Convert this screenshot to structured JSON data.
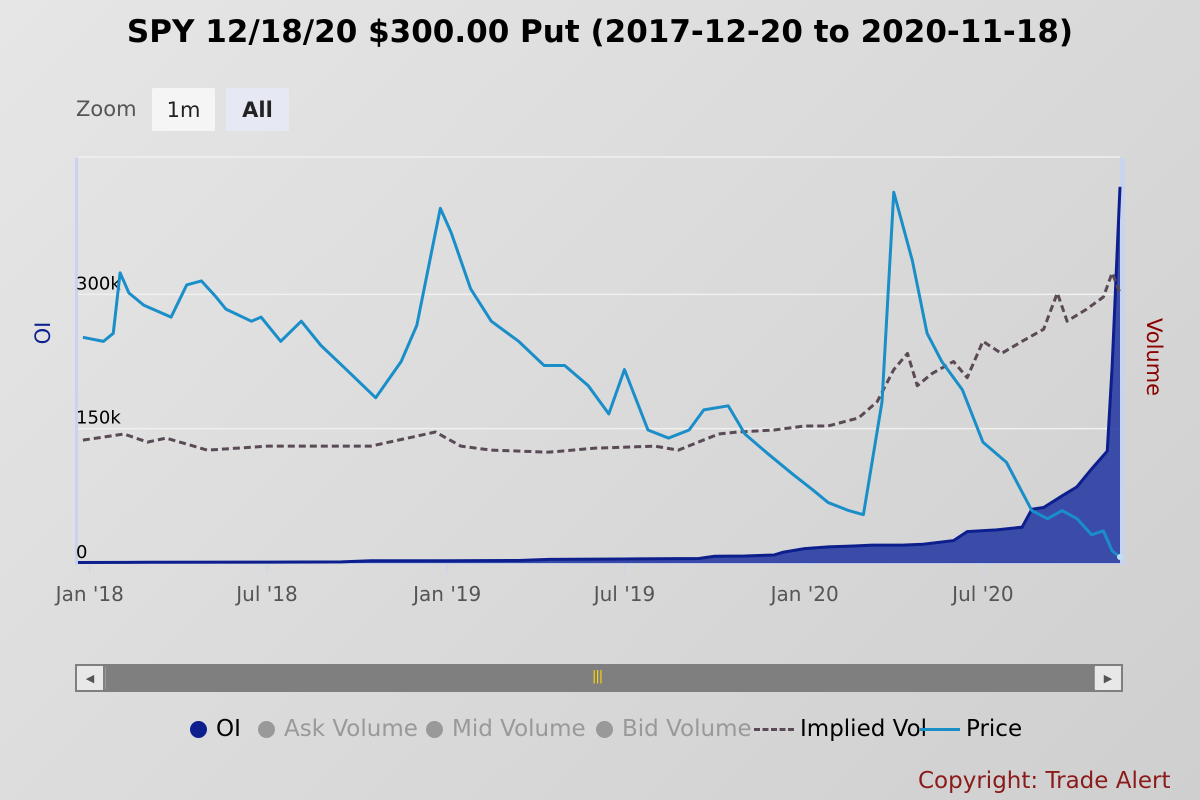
{
  "title": "SPY 12/18/20 $300.00 Put (2017-12-20 to 2020-11-18)",
  "zoom": {
    "label": "Zoom",
    "buttons": [
      "1m",
      "All"
    ],
    "selected": "All"
  },
  "copyright": "Copyright: Trade Alert",
  "colors": {
    "oi": "#0d1f8c",
    "oi_fill": "#1f34a0",
    "price": "#1a8ec9",
    "implied_vol": "#5a4a55",
    "volume_title": "#8b0000",
    "inactive": "#999999"
  },
  "chart_data": {
    "type": "area",
    "x_range": [
      "2017-12-20",
      "2020-11-18"
    ],
    "x_ticks": [
      "Jan '18",
      "Jul '18",
      "Jan '19",
      "Jul '19",
      "Jan '20",
      "Jul '20"
    ],
    "left_axis": {
      "title": "OI",
      "ticks": [
        "0",
        "150k",
        "300k"
      ],
      "range": [
        0,
        450000
      ]
    },
    "right_axis": {
      "title": "Volume"
    },
    "grid": true,
    "legend_position": "bottom",
    "legend": [
      {
        "name": "OI",
        "active": true
      },
      {
        "name": "Ask Volume",
        "active": false
      },
      {
        "name": "Mid Volume",
        "active": false
      },
      {
        "name": "Bid Volume",
        "active": false
      },
      {
        "name": "Implied Vol",
        "active": true
      },
      {
        "name": "Price",
        "active": true
      }
    ],
    "series": [
      {
        "name": "OI",
        "style": "area",
        "points": [
          [
            "2017-12-20",
            500
          ],
          [
            "2018-03-01",
            800
          ],
          [
            "2018-07-01",
            1000
          ],
          [
            "2018-09-15",
            1200
          ],
          [
            "2018-10-15",
            2500
          ],
          [
            "2019-01-01",
            2500
          ],
          [
            "2019-03-15",
            2800
          ],
          [
            "2019-04-15",
            4000
          ],
          [
            "2019-07-01",
            4500
          ],
          [
            "2019-09-15",
            5000
          ],
          [
            "2019-10-01",
            7500
          ],
          [
            "2019-11-01",
            7800
          ],
          [
            "2019-12-01",
            9000
          ],
          [
            "2019-12-10",
            12000
          ],
          [
            "2020-01-01",
            16000
          ],
          [
            "2020-01-25",
            18000
          ],
          [
            "2020-02-20",
            19000
          ],
          [
            "2020-03-10",
            20000
          ],
          [
            "2020-04-10",
            20000
          ],
          [
            "2020-05-01",
            21000
          ],
          [
            "2020-06-01",
            25000
          ],
          [
            "2020-06-15",
            35000
          ],
          [
            "2020-07-15",
            37000
          ],
          [
            "2020-08-10",
            40000
          ],
          [
            "2020-08-20",
            60000
          ],
          [
            "2020-09-01",
            62000
          ],
          [
            "2020-09-20",
            75000
          ],
          [
            "2020-10-05",
            85000
          ],
          [
            "2020-10-20",
            105000
          ],
          [
            "2020-11-05",
            125000
          ],
          [
            "2020-11-10",
            220000
          ],
          [
            "2020-11-18",
            420000
          ]
        ]
      },
      {
        "name": "Implied Vol",
        "style": "dashed",
        "points": [
          [
            "2017-12-25",
            0.305
          ],
          [
            "2018-02-05",
            0.32
          ],
          [
            "2018-03-01",
            0.3
          ],
          [
            "2018-03-20",
            0.31
          ],
          [
            "2018-05-01",
            0.28
          ],
          [
            "2018-07-01",
            0.29
          ],
          [
            "2018-09-01",
            0.29
          ],
          [
            "2018-10-15",
            0.29
          ],
          [
            "2018-12-20",
            0.325
          ],
          [
            "2019-01-15",
            0.29
          ],
          [
            "2019-02-15",
            0.28
          ],
          [
            "2019-04-15",
            0.275
          ],
          [
            "2019-06-01",
            0.285
          ],
          [
            "2019-08-01",
            0.29
          ],
          [
            "2019-08-25",
            0.28
          ],
          [
            "2019-10-05",
            0.32
          ],
          [
            "2019-10-25",
            0.325
          ],
          [
            "2019-12-01",
            0.33
          ],
          [
            "2020-01-01",
            0.34
          ],
          [
            "2020-01-25",
            0.34
          ],
          [
            "2020-02-25",
            0.36
          ],
          [
            "2020-03-15",
            0.4
          ],
          [
            "2020-04-01",
            0.48
          ],
          [
            "2020-04-15",
            0.52
          ],
          [
            "2020-04-25",
            0.44
          ],
          [
            "2020-05-10",
            0.47
          ],
          [
            "2020-06-01",
            0.5
          ],
          [
            "2020-06-15",
            0.46
          ],
          [
            "2020-07-01",
            0.55
          ],
          [
            "2020-07-20",
            0.52
          ],
          [
            "2020-08-10",
            0.55
          ],
          [
            "2020-09-01",
            0.58
          ],
          [
            "2020-09-15",
            0.67
          ],
          [
            "2020-09-25",
            0.6
          ],
          [
            "2020-10-15",
            0.63
          ],
          [
            "2020-11-01",
            0.66
          ],
          [
            "2020-11-10",
            0.72
          ],
          [
            "2020-11-18",
            0.67
          ]
        ]
      },
      {
        "name": "Price",
        "style": "solid",
        "points": [
          [
            "2017-12-25",
            0.56
          ],
          [
            "2018-01-15",
            0.55
          ],
          [
            "2018-01-25",
            0.57
          ],
          [
            "2018-02-01",
            0.72
          ],
          [
            "2018-02-10",
            0.67
          ],
          [
            "2018-02-25",
            0.64
          ],
          [
            "2018-03-25",
            0.61
          ],
          [
            "2018-04-10",
            0.69
          ],
          [
            "2018-04-25",
            0.7
          ],
          [
            "2018-05-10",
            0.66
          ],
          [
            "2018-05-20",
            0.63
          ],
          [
            "2018-06-15",
            0.6
          ],
          [
            "2018-06-25",
            0.61
          ],
          [
            "2018-07-15",
            0.55
          ],
          [
            "2018-08-05",
            0.6
          ],
          [
            "2018-08-25",
            0.54
          ],
          [
            "2018-09-20",
            0.48
          ],
          [
            "2018-10-20",
            0.41
          ],
          [
            "2018-11-15",
            0.5
          ],
          [
            "2018-12-01",
            0.59
          ],
          [
            "2018-12-20",
            0.82
          ],
          [
            "2018-12-25",
            0.88
          ],
          [
            "2019-01-05",
            0.82
          ],
          [
            "2019-01-25",
            0.68
          ],
          [
            "2019-02-15",
            0.6
          ],
          [
            "2019-03-15",
            0.55
          ],
          [
            "2019-04-10",
            0.49
          ],
          [
            "2019-05-01",
            0.49
          ],
          [
            "2019-05-25",
            0.44
          ],
          [
            "2019-06-15",
            0.37
          ],
          [
            "2019-07-01",
            0.48
          ],
          [
            "2019-07-25",
            0.33
          ],
          [
            "2019-08-15",
            0.31
          ],
          [
            "2019-09-05",
            0.33
          ],
          [
            "2019-09-20",
            0.38
          ],
          [
            "2019-10-15",
            0.39
          ],
          [
            "2019-11-01",
            0.32
          ],
          [
            "2019-11-25",
            0.27
          ],
          [
            "2019-12-20",
            0.22
          ],
          [
            "2020-01-10",
            0.18
          ],
          [
            "2020-01-25",
            0.15
          ],
          [
            "2020-02-15",
            0.13
          ],
          [
            "2020-03-01",
            0.12
          ],
          [
            "2020-03-20",
            0.4
          ],
          [
            "2020-04-01",
            0.92
          ],
          [
            "2020-04-20",
            0.75
          ],
          [
            "2020-05-05",
            0.57
          ],
          [
            "2020-05-20",
            0.5
          ],
          [
            "2020-06-10",
            0.43
          ],
          [
            "2020-07-01",
            0.3
          ],
          [
            "2020-07-25",
            0.25
          ],
          [
            "2020-08-20",
            0.13
          ],
          [
            "2020-09-05",
            0.11
          ],
          [
            "2020-09-20",
            0.13
          ],
          [
            "2020-10-05",
            0.11
          ],
          [
            "2020-10-20",
            0.07
          ],
          [
            "2020-11-01",
            0.08
          ],
          [
            "2020-11-10",
            0.03
          ],
          [
            "2020-11-18",
            0.015
          ]
        ]
      }
    ]
  }
}
